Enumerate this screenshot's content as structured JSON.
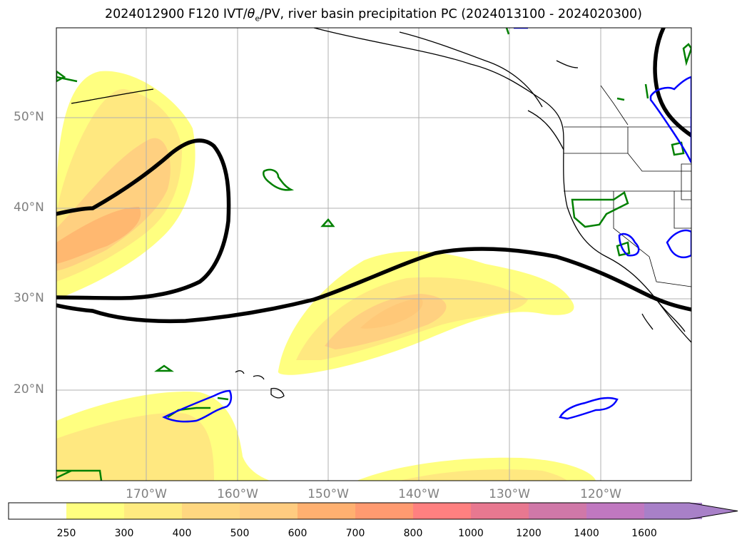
{
  "title": {
    "prefix": "2024012900 F120 IVT/",
    "theta_symbol": "θ",
    "theta_sub": "e",
    "suffix": "/PV, river basin precipitation PC (2024013100 - 2024020300)"
  },
  "map": {
    "lat_labels": [
      "50°N",
      "40°N",
      "30°N",
      "20°N"
    ],
    "lon_labels": [
      "170°W",
      "160°W",
      "150°W",
      "140°W",
      "130°W",
      "120°W"
    ],
    "ivt_fill_colors": [
      "#ffff80",
      "#ffe880",
      "#ffd080",
      "#ffb870"
    ],
    "contour_colors": {
      "black": "#000000",
      "green": "#008000",
      "blue": "#0000ff"
    }
  },
  "colorbar": {
    "ticks": [
      "250",
      "300",
      "400",
      "500",
      "600",
      "700",
      "800",
      "1000",
      "1200",
      "1400",
      "1600"
    ],
    "colors": [
      "#ffffff",
      "#ffff80",
      "#ffeb80",
      "#ffd780",
      "#ffcc80",
      "#ffb070",
      "#ff9a70",
      "#ff8080",
      "#e87890",
      "#d078a8",
      "#c078c0",
      "#a880c8"
    ]
  }
}
